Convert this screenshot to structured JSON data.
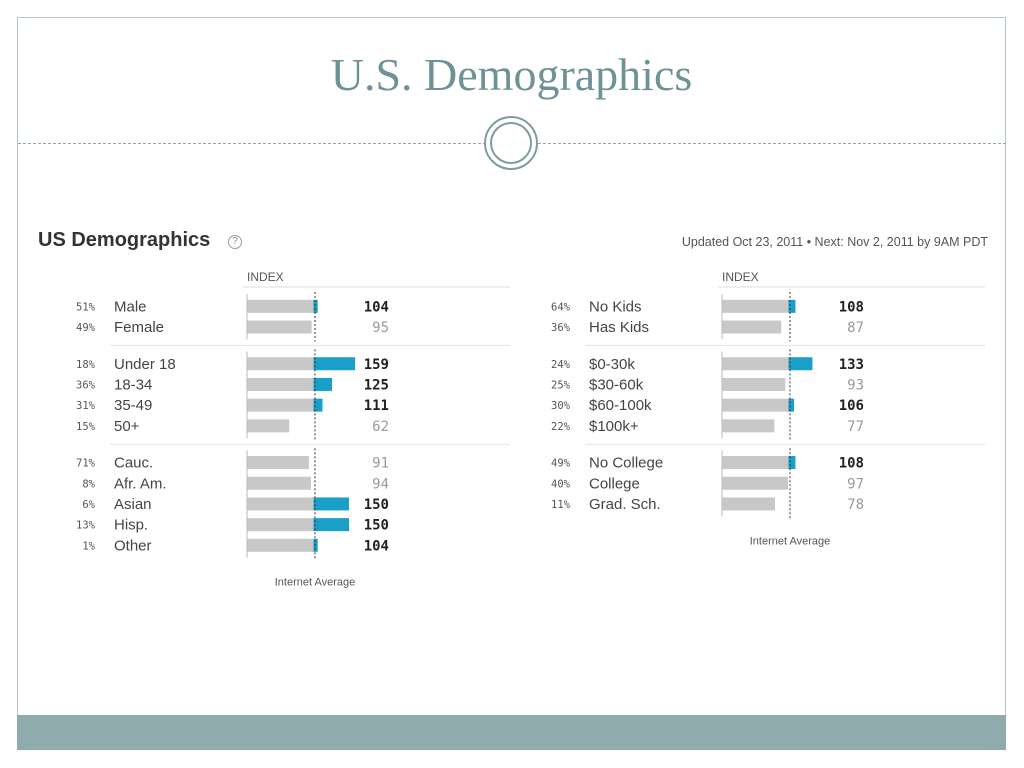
{
  "slide": {
    "title": "U.S. Demographics"
  },
  "widget": {
    "title": "US Demographics",
    "help_icon": "?",
    "updated": "Updated Oct 23, 2011 • Next: Nov 2, 2011 by 9AM PDT"
  },
  "colors": {
    "bar_base": "#c8c8c8",
    "bar_over": "#1a9fc9",
    "title": "#6e9296",
    "footer": "#8fabad"
  },
  "chart_data": [
    {
      "type": "bar",
      "index_label": "INDEX",
      "average_label": "Internet Average",
      "average_value": 100,
      "groups": [
        {
          "rows": [
            {
              "pct": "51%",
              "label": "Male",
              "index": 104
            },
            {
              "pct": "49%",
              "label": "Female",
              "index": 95
            }
          ]
        },
        {
          "rows": [
            {
              "pct": "18%",
              "label": "Under 18",
              "index": 159
            },
            {
              "pct": "36%",
              "label": "18-34",
              "index": 125
            },
            {
              "pct": "31%",
              "label": "35-49",
              "index": 111
            },
            {
              "pct": "15%",
              "label": "50+",
              "index": 62
            }
          ]
        },
        {
          "rows": [
            {
              "pct": "71%",
              "label": "Cauc.",
              "index": 91
            },
            {
              "pct": "8%",
              "label": "Afr. Am.",
              "index": 94
            },
            {
              "pct": "6%",
              "label": "Asian",
              "index": 150
            },
            {
              "pct": "13%",
              "label": "Hisp.",
              "index": 150
            },
            {
              "pct": "1%",
              "label": "Other",
              "index": 104
            }
          ]
        }
      ]
    },
    {
      "type": "bar",
      "index_label": "INDEX",
      "average_label": "Internet Average",
      "average_value": 100,
      "groups": [
        {
          "rows": [
            {
              "pct": "64%",
              "label": "No Kids",
              "index": 108
            },
            {
              "pct": "36%",
              "label": "Has Kids",
              "index": 87
            }
          ]
        },
        {
          "rows": [
            {
              "pct": "24%",
              "label": "$0-30k",
              "index": 133
            },
            {
              "pct": "25%",
              "label": "$30-60k",
              "index": 93
            },
            {
              "pct": "30%",
              "label": "$60-100k",
              "index": 106
            },
            {
              "pct": "22%",
              "label": "$100k+",
              "index": 77
            }
          ]
        },
        {
          "rows": [
            {
              "pct": "49%",
              "label": "No College",
              "index": 108
            },
            {
              "pct": "40%",
              "label": "College",
              "index": 97
            },
            {
              "pct": "11%",
              "label": "Grad. Sch.",
              "index": 78
            }
          ]
        }
      ]
    }
  ]
}
